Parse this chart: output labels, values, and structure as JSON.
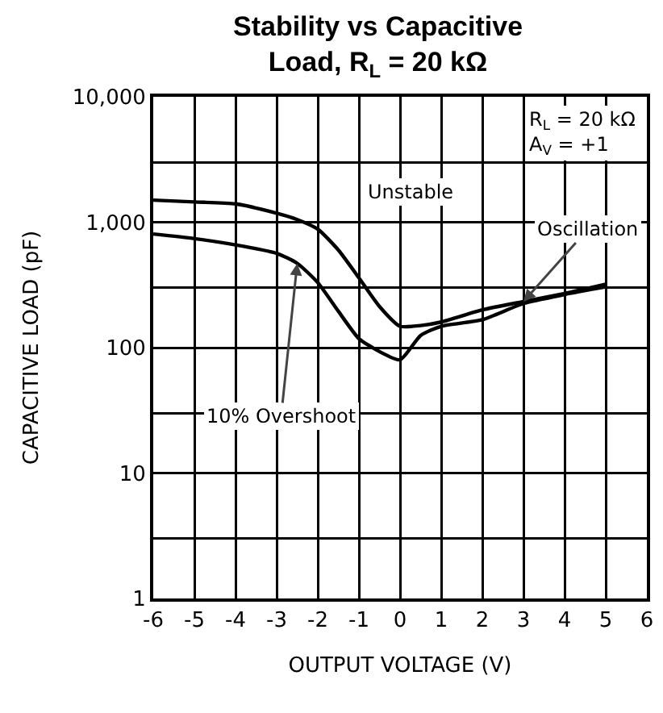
{
  "chart_data": {
    "type": "line",
    "title": "Stability vs Capacitive\nLoad, R$_{L}$ = 20 kΩ",
    "xlabel": "OUTPUT VOLTAGE (V)",
    "ylabel": "CAPACITIVE LOAD (pF)",
    "log": "y",
    "grid": true,
    "marker": "none",
    "line_style": "solid",
    "xlim": [
      -6,
      6
    ],
    "xticks": [
      -6,
      -5,
      -4,
      -3,
      -2,
      -1,
      0,
      1,
      2,
      3,
      4,
      5,
      6
    ],
    "ylim": [
      1,
      10000
    ],
    "yticks": [
      1,
      {
        "value": 3,
        "label": null
      },
      10,
      {
        "value": 30,
        "label": null
      },
      100,
      {
        "value": 300,
        "label": null
      },
      {
        "value": 1000,
        "label": "1,000"
      },
      {
        "value": 3000,
        "label": null
      },
      {
        "value": 10000,
        "label": "10,000"
      }
    ],
    "series": [
      {
        "color": "#000000",
        "x": [
          -6,
          -5,
          -4,
          -3,
          -2.5,
          -2,
          -1.5,
          -1,
          -0.5,
          0,
          0.5,
          1,
          2,
          3,
          4,
          5
        ],
        "values": [
          1500,
          1450,
          1400,
          1180,
          1050,
          880,
          600,
          360,
          213,
          148,
          150,
          160,
          200,
          233,
          270,
          320
        ]
      },
      {
        "color": "#000000",
        "x": [
          -6,
          -5,
          -4,
          -3,
          -2.5,
          -2,
          -1.5,
          -1,
          -0.5,
          0,
          0.5,
          1,
          2,
          3,
          4,
          5
        ],
        "values": [
          805,
          740,
          660,
          565,
          470,
          330,
          195,
          118,
          93,
          80,
          125,
          148,
          167,
          225,
          265,
          305
        ]
      }
    ],
    "annotations": [
      {
        "text": "Oscillation",
        "x": 3,
        "y": 233
      },
      {
        "text": "10% Overshoot",
        "x": -2.5,
        "y": 470
      },
      "Unstable",
      "R$_{L}$ = 20 kΩ\nA$_{V}$ = +1"
    ]
  }
}
